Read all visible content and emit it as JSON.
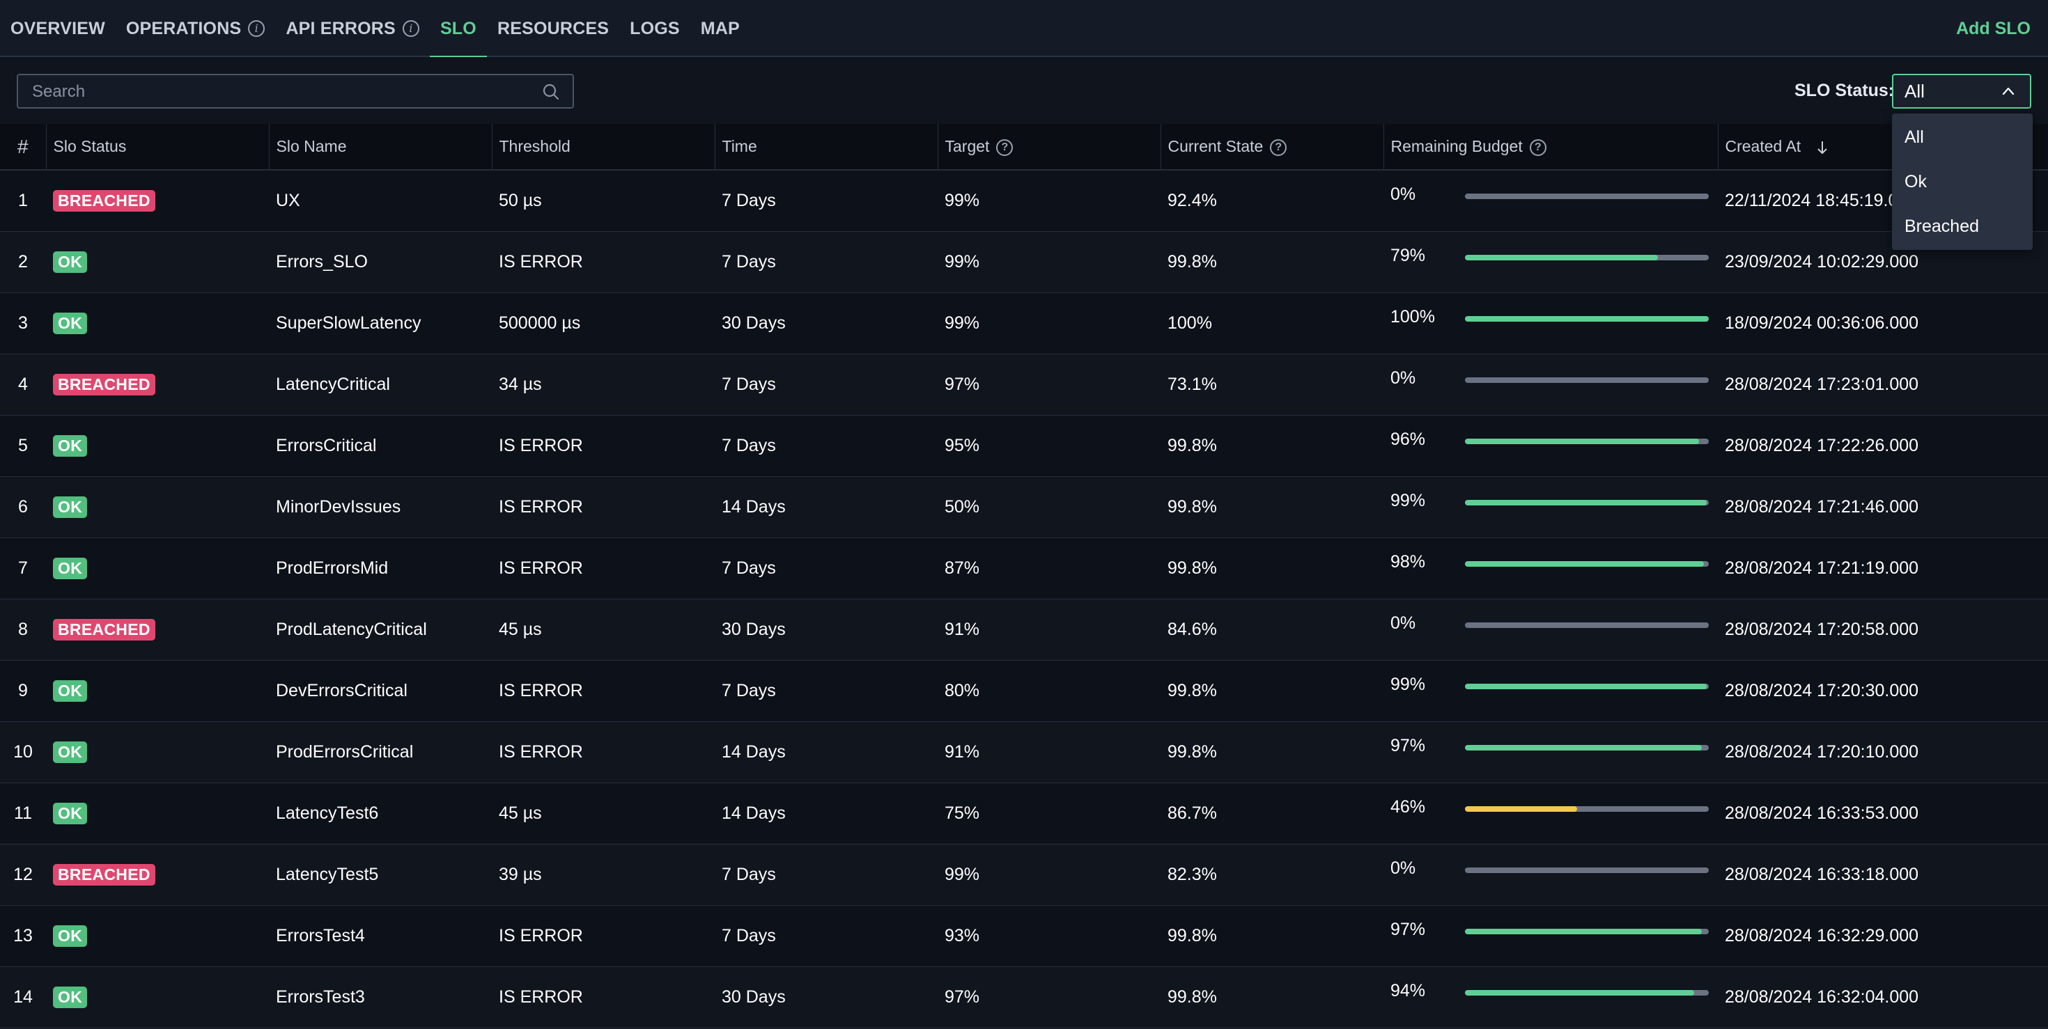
{
  "nav": {
    "tabs": [
      {
        "label": "OVERVIEW",
        "info": false,
        "active": false
      },
      {
        "label": "OPERATIONS",
        "info": true,
        "active": false
      },
      {
        "label": "API ERRORS",
        "info": true,
        "active": false
      },
      {
        "label": "SLO",
        "info": false,
        "active": true
      },
      {
        "label": "RESOURCES",
        "info": false,
        "active": false
      },
      {
        "label": "LOGS",
        "info": false,
        "active": false
      },
      {
        "label": "MAP",
        "info": false,
        "active": false
      }
    ],
    "add_slo_label": "Add SLO"
  },
  "search": {
    "placeholder": "Search",
    "value": ""
  },
  "status_filter": {
    "label": "SLO Status:",
    "selected": "All",
    "options": [
      "All",
      "Ok",
      "Breached"
    ]
  },
  "columns": {
    "index": "#",
    "status": "Slo Status",
    "name": "Slo Name",
    "threshold": "Threshold",
    "time": "Time",
    "target": "Target",
    "current_state": "Current State",
    "remaining_budget": "Remaining Budget",
    "created_at": "Created At"
  },
  "colors": {
    "accent": "#5fcf95",
    "breached": "#e0476f",
    "ok": "#52be7f",
    "budget_good": "#5fcf95",
    "budget_warn": "#f2c94c",
    "budget_track": "#6b7383"
  },
  "rows": [
    {
      "n": "1",
      "status": "BREACHED",
      "name": "UX",
      "threshold": "50 µs",
      "time": "7 Days",
      "target": "99%",
      "current": "92.4%",
      "budget": "0%",
      "budget_value": 0,
      "created": "22/11/2024 18:45:19.000"
    },
    {
      "n": "2",
      "status": "OK",
      "name": "Errors_SLO",
      "threshold": "IS ERROR",
      "time": "7 Days",
      "target": "99%",
      "current": "99.8%",
      "budget": "79%",
      "budget_value": 79,
      "created": "23/09/2024 10:02:29.000"
    },
    {
      "n": "3",
      "status": "OK",
      "name": "SuperSlowLatency",
      "threshold": "500000 µs",
      "time": "30 Days",
      "target": "99%",
      "current": "100%",
      "budget": "100%",
      "budget_value": 100,
      "created": "18/09/2024 00:36:06.000"
    },
    {
      "n": "4",
      "status": "BREACHED",
      "name": "LatencyCritical",
      "threshold": "34 µs",
      "time": "7 Days",
      "target": "97%",
      "current": "73.1%",
      "budget": "0%",
      "budget_value": 0,
      "created": "28/08/2024 17:23:01.000"
    },
    {
      "n": "5",
      "status": "OK",
      "name": "ErrorsCritical",
      "threshold": "IS ERROR",
      "time": "7 Days",
      "target": "95%",
      "current": "99.8%",
      "budget": "96%",
      "budget_value": 96,
      "created": "28/08/2024 17:22:26.000"
    },
    {
      "n": "6",
      "status": "OK",
      "name": "MinorDevIssues",
      "threshold": "IS ERROR",
      "time": "14 Days",
      "target": "50%",
      "current": "99.8%",
      "budget": "99%",
      "budget_value": 99,
      "created": "28/08/2024 17:21:46.000"
    },
    {
      "n": "7",
      "status": "OK",
      "name": "ProdErrorsMid",
      "threshold": "IS ERROR",
      "time": "7 Days",
      "target": "87%",
      "current": "99.8%",
      "budget": "98%",
      "budget_value": 98,
      "created": "28/08/2024 17:21:19.000"
    },
    {
      "n": "8",
      "status": "BREACHED",
      "name": "ProdLatencyCritical",
      "threshold": "45 µs",
      "time": "30 Days",
      "target": "91%",
      "current": "84.6%",
      "budget": "0%",
      "budget_value": 0,
      "created": "28/08/2024 17:20:58.000"
    },
    {
      "n": "9",
      "status": "OK",
      "name": "DevErrorsCritical",
      "threshold": "IS ERROR",
      "time": "7 Days",
      "target": "80%",
      "current": "99.8%",
      "budget": "99%",
      "budget_value": 99,
      "created": "28/08/2024 17:20:30.000"
    },
    {
      "n": "10",
      "status": "OK",
      "name": "ProdErrorsCritical",
      "threshold": "IS ERROR",
      "time": "14 Days",
      "target": "91%",
      "current": "99.8%",
      "budget": "97%",
      "budget_value": 97,
      "created": "28/08/2024 17:20:10.000"
    },
    {
      "n": "11",
      "status": "OK",
      "name": "LatencyTest6",
      "threshold": "45 µs",
      "time": "14 Days",
      "target": "75%",
      "current": "86.7%",
      "budget": "46%",
      "budget_value": 46,
      "created": "28/08/2024 16:33:53.000"
    },
    {
      "n": "12",
      "status": "BREACHED",
      "name": "LatencyTest5",
      "threshold": "39 µs",
      "time": "7 Days",
      "target": "99%",
      "current": "82.3%",
      "budget": "0%",
      "budget_value": 0,
      "created": "28/08/2024 16:33:18.000"
    },
    {
      "n": "13",
      "status": "OK",
      "name": "ErrorsTest4",
      "threshold": "IS ERROR",
      "time": "7 Days",
      "target": "93%",
      "current": "99.8%",
      "budget": "97%",
      "budget_value": 97,
      "created": "28/08/2024 16:32:29.000"
    },
    {
      "n": "14",
      "status": "OK",
      "name": "ErrorsTest3",
      "threshold": "IS ERROR",
      "time": "30 Days",
      "target": "97%",
      "current": "99.8%",
      "budget": "94%",
      "budget_value": 94,
      "created": "28/08/2024 16:32:04.000"
    }
  ]
}
